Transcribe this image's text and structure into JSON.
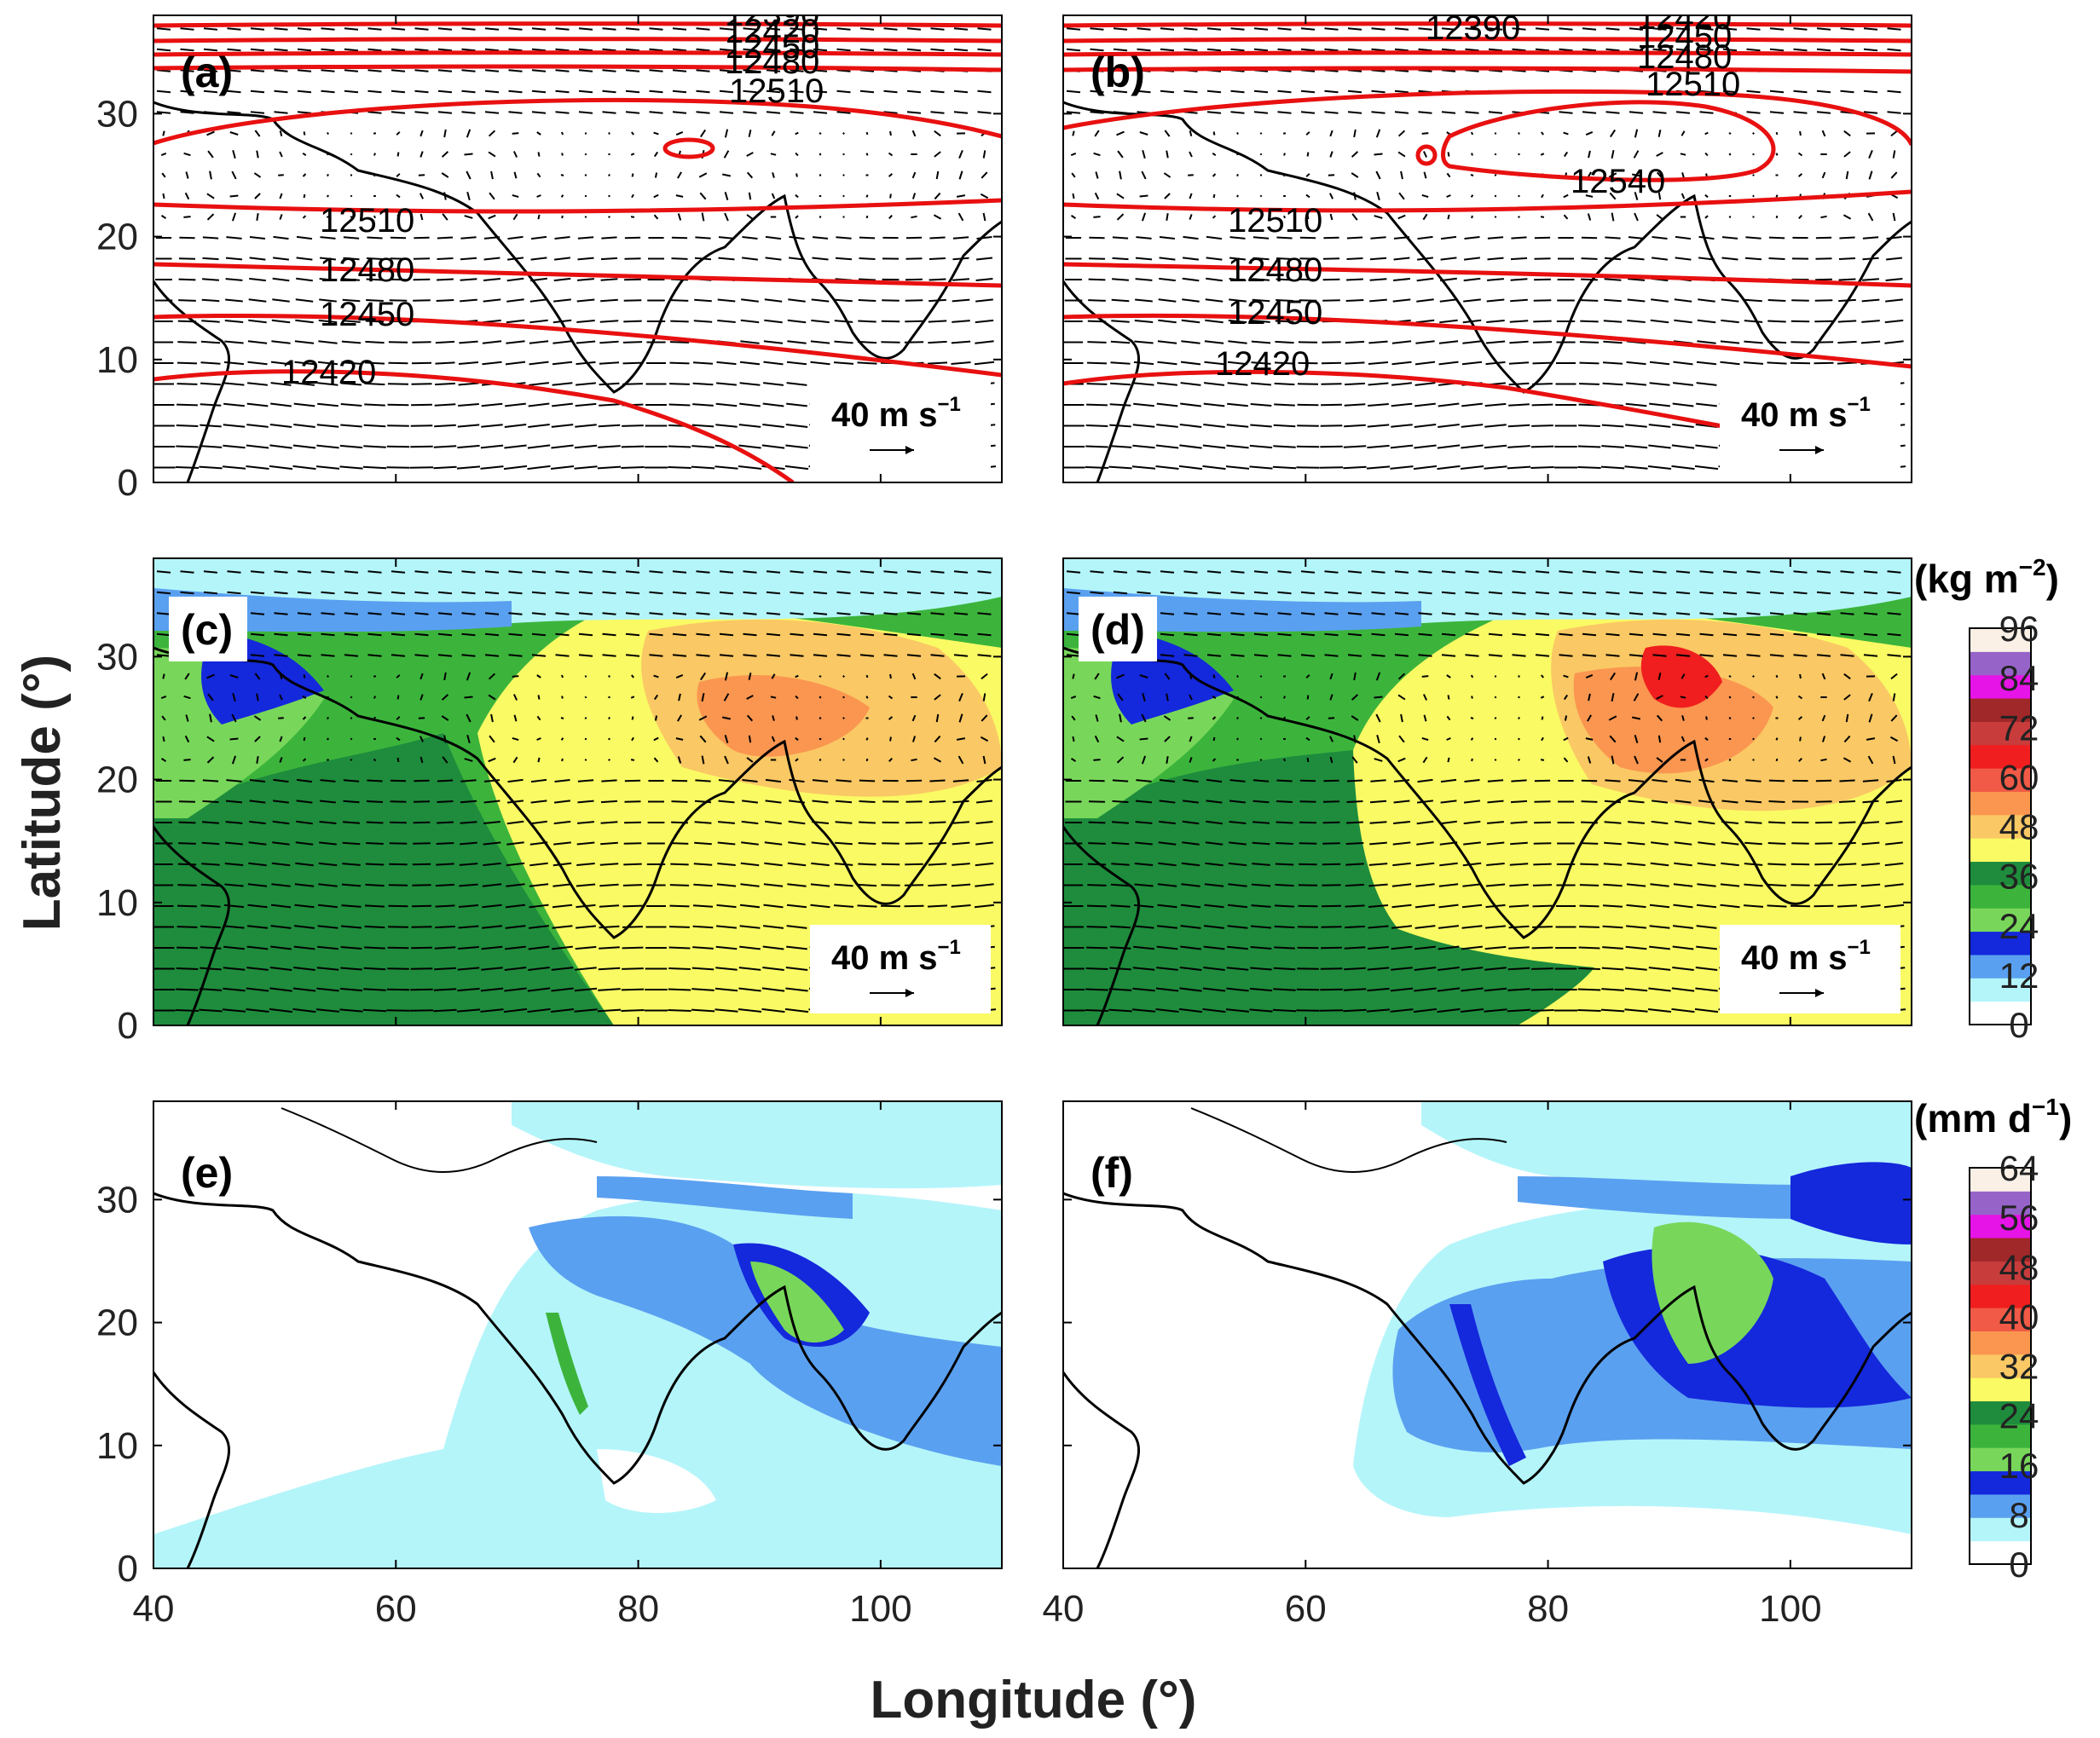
{
  "figure": {
    "xlabel": "Longitude (°)",
    "ylabel": "Latitude (°)"
  },
  "axes": {
    "x_ticks": [
      "40",
      "60",
      "80",
      "100"
    ],
    "y_ticks": [
      "0",
      "10",
      "20",
      "30"
    ],
    "xlim": [
      40,
      110
    ],
    "ylim": [
      0,
      38
    ]
  },
  "panels": [
    {
      "id": "a",
      "label": "(a)",
      "field": "geopotential-height",
      "reference_vector": "40 m s",
      "contour_labels": [
        "12390",
        "12420",
        "12450",
        "12480",
        "12510",
        "12510",
        "12480",
        "12450",
        "12420"
      ]
    },
    {
      "id": "b",
      "label": "(b)",
      "field": "geopotential-height",
      "reference_vector": "40 m s",
      "contour_labels": [
        "12390",
        "12420",
        "12450",
        "12480",
        "12510",
        "12540",
        "12510",
        "12480",
        "12450",
        "12420"
      ]
    },
    {
      "id": "c",
      "label": "(c)",
      "field": "precipitable-water",
      "reference_vector": "40 m s"
    },
    {
      "id": "d",
      "label": "(d)",
      "field": "precipitable-water",
      "reference_vector": "40 m s"
    },
    {
      "id": "e",
      "label": "(e)",
      "field": "precipitation"
    },
    {
      "id": "f",
      "label": "(f)",
      "field": "precipitation"
    }
  ],
  "ref_vector_exponent": "−1",
  "colorbars": [
    {
      "unit_text": "(kg m",
      "unit_exponent": "−2",
      "unit_close": ")",
      "ticks": [
        "0",
        "12",
        "24",
        "36",
        "48",
        "60",
        "72",
        "84",
        "96"
      ],
      "colors": [
        "#ffffff",
        "#b4f5fa",
        "#5aa0f0",
        "#1428dc",
        "#78d75a",
        "#3cb43c",
        "#1e8c3c",
        "#fafa64",
        "#fac864",
        "#fa9650",
        "#f05a46",
        "#f01e1e",
        "#c83c3c",
        "#a02828",
        "#e614e6",
        "#9664c8",
        "#faf0e6"
      ]
    },
    {
      "unit_text": "(mm d",
      "unit_exponent": "−1",
      "unit_close": ")",
      "ticks": [
        "0",
        "8",
        "16",
        "24",
        "32",
        "40",
        "48",
        "56",
        "64"
      ],
      "colors": [
        "#ffffff",
        "#b4f5fa",
        "#5aa0f0",
        "#1428dc",
        "#78d75a",
        "#3cb43c",
        "#1e8c3c",
        "#fafa64",
        "#fac864",
        "#fa9650",
        "#f05a46",
        "#f01e1e",
        "#c83c3c",
        "#a02828",
        "#e614e6",
        "#9664c8",
        "#faf0e6"
      ]
    }
  ],
  "colors": {
    "contour": "#e81010",
    "coast": "#000000",
    "vector": "#000000",
    "frame": "#000000"
  }
}
